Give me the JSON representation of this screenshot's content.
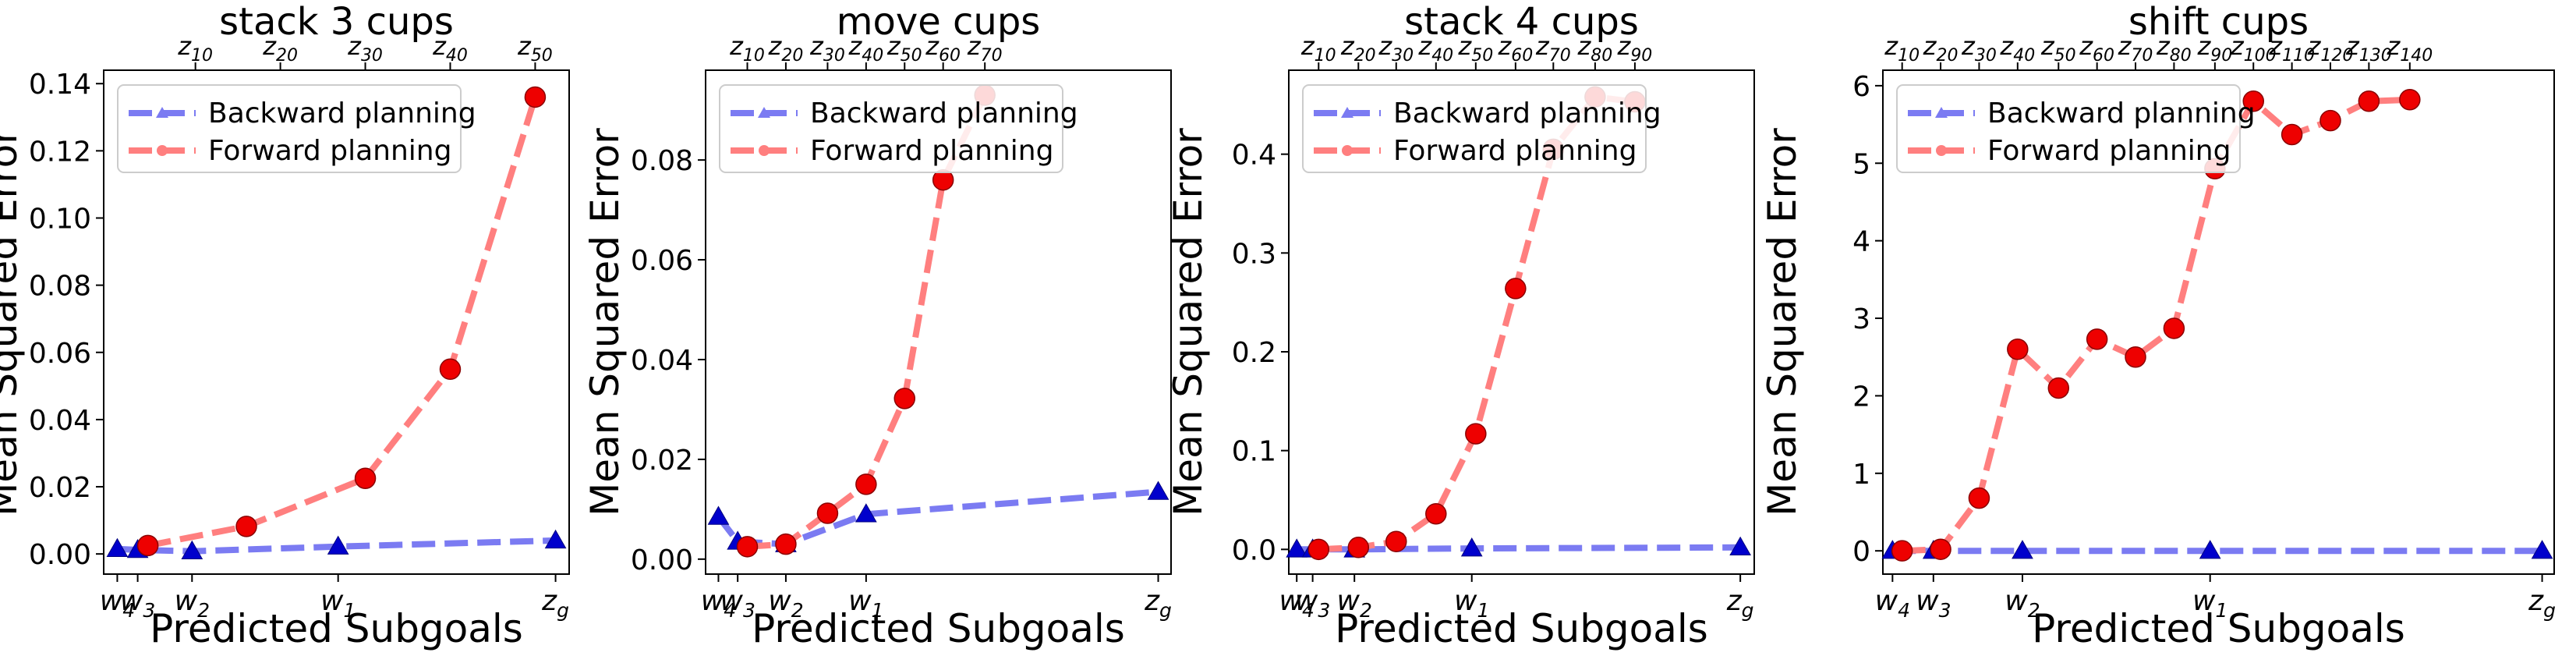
{
  "chart_data": [
    {
      "type": "line",
      "title": "stack 3 cups",
      "xlabel": "Predicted Subgoals",
      "ylabel": "Mean Squared Error",
      "legend_position": "top-left",
      "ylim": [
        -0.006,
        0.144
      ],
      "yticks": [
        0.0,
        0.02,
        0.04,
        0.06,
        0.08,
        0.1,
        0.12,
        0.14
      ],
      "ytick_labels": [
        "0.00",
        "0.02",
        "0.04",
        "0.06",
        "0.08",
        "0.10",
        "0.12",
        "0.14"
      ],
      "xlim": [
        -0.4,
        13.3
      ],
      "bottom_ticks": [
        {
          "x": 0,
          "base": "w",
          "sub": "4"
        },
        {
          "x": 0.6,
          "base": "w",
          "sub": "3"
        },
        {
          "x": 2.2,
          "base": "w",
          "sub": "2"
        },
        {
          "x": 6.5,
          "base": "w",
          "sub": "1"
        },
        {
          "x": 12.9,
          "base": "z",
          "sub": "g"
        }
      ],
      "top_ticks": [
        {
          "x": 2.3,
          "base": "z",
          "sub": "10"
        },
        {
          "x": 4.8,
          "base": "z",
          "sub": "20"
        },
        {
          "x": 7.3,
          "base": "z",
          "sub": "30"
        },
        {
          "x": 9.8,
          "base": "z",
          "sub": "40"
        },
        {
          "x": 12.3,
          "base": "z",
          "sub": "50"
        }
      ],
      "series": [
        {
          "name": "Backward planning",
          "color": "#7b7bf2",
          "marker": "triangle",
          "marker_color": "#0000cc",
          "x": [
            0,
            0.6,
            2.2,
            6.5,
            12.9
          ],
          "y": [
            0.0015,
            0.0012,
            0.0008,
            0.0022,
            0.004
          ]
        },
        {
          "name": "Forward planning",
          "color": "#ff7f7f",
          "marker": "circle",
          "marker_color": "#ee0000",
          "x": [
            0.9,
            3.8,
            7.3,
            9.8,
            12.3
          ],
          "y": [
            0.0025,
            0.0082,
            0.0225,
            0.055,
            0.136
          ]
        }
      ]
    },
    {
      "type": "line",
      "title": "move cups",
      "xlabel": "Predicted Subgoals",
      "ylabel": "Mean Squared Error",
      "legend_position": "top-left",
      "ylim": [
        -0.003,
        0.098
      ],
      "yticks": [
        0.0,
        0.02,
        0.04,
        0.06,
        0.08
      ],
      "ytick_labels": [
        "0.00",
        "0.02",
        "0.04",
        "0.06",
        "0.08"
      ],
      "xlim": [
        -0.4,
        14.1
      ],
      "bottom_ticks": [
        {
          "x": 0,
          "base": "w",
          "sub": "4"
        },
        {
          "x": 0.6,
          "base": "w",
          "sub": "3"
        },
        {
          "x": 2.1,
          "base": "w",
          "sub": "2"
        },
        {
          "x": 4.6,
          "base": "w",
          "sub": "1"
        },
        {
          "x": 13.7,
          "base": "z",
          "sub": "g"
        }
      ],
      "top_ticks": [
        {
          "x": 0.9,
          "base": "z",
          "sub": "10"
        },
        {
          "x": 2.1,
          "base": "z",
          "sub": "20"
        },
        {
          "x": 3.4,
          "base": "z",
          "sub": "30"
        },
        {
          "x": 4.6,
          "base": "z",
          "sub": "40"
        },
        {
          "x": 5.8,
          "base": "z",
          "sub": "50"
        },
        {
          "x": 7.0,
          "base": "z",
          "sub": "60"
        },
        {
          "x": 8.3,
          "base": "z",
          "sub": "70"
        }
      ],
      "series": [
        {
          "name": "Backward planning",
          "color": "#7b7bf2",
          "marker": "triangle",
          "marker_color": "#0000cc",
          "x": [
            0,
            0.6,
            2.1,
            4.6,
            13.7
          ],
          "y": [
            0.0085,
            0.0035,
            0.003,
            0.009,
            0.0135
          ]
        },
        {
          "name": "Forward planning",
          "color": "#ff7f7f",
          "marker": "circle",
          "marker_color": "#ee0000",
          "x": [
            0.9,
            2.1,
            3.4,
            4.6,
            5.8,
            7.0,
            8.3
          ],
          "y": [
            0.0025,
            0.003,
            0.0092,
            0.015,
            0.0322,
            0.076,
            0.093
          ]
        }
      ]
    },
    {
      "type": "line",
      "title": "stack 4 cups",
      "xlabel": "Predicted Subgoals",
      "ylabel": "Mean Squared Error",
      "legend_position": "top-left",
      "ylim": [
        -0.025,
        0.485
      ],
      "yticks": [
        0.0,
        0.1,
        0.2,
        0.3,
        0.4
      ],
      "ytick_labels": [
        "0.0",
        "0.1",
        "0.2",
        "0.3",
        "0.4"
      ],
      "xlim": [
        -0.4,
        23.0
      ],
      "bottom_ticks": [
        {
          "x": 0,
          "base": "w",
          "sub": "4"
        },
        {
          "x": 0.8,
          "base": "w",
          "sub": "3"
        },
        {
          "x": 2.9,
          "base": "w",
          "sub": "2"
        },
        {
          "x": 8.8,
          "base": "w",
          "sub": "1"
        },
        {
          "x": 22.3,
          "base": "z",
          "sub": "g"
        }
      ],
      "top_ticks": [
        {
          "x": 1.1,
          "base": "z",
          "sub": "10"
        },
        {
          "x": 3.1,
          "base": "z",
          "sub": "20"
        },
        {
          "x": 5.0,
          "base": "z",
          "sub": "30"
        },
        {
          "x": 7.0,
          "base": "z",
          "sub": "40"
        },
        {
          "x": 9.0,
          "base": "z",
          "sub": "50"
        },
        {
          "x": 11.0,
          "base": "z",
          "sub": "60"
        },
        {
          "x": 12.9,
          "base": "z",
          "sub": "70"
        },
        {
          "x": 15.0,
          "base": "z",
          "sub": "80"
        },
        {
          "x": 17.0,
          "base": "z",
          "sub": "90"
        }
      ],
      "series": [
        {
          "name": "Backward planning",
          "color": "#7b7bf2",
          "marker": "triangle",
          "marker_color": "#0000cc",
          "x": [
            0,
            0.8,
            2.9,
            8.8,
            22.3
          ],
          "y": [
            0.0,
            0.0,
            0.0,
            0.001,
            0.002
          ]
        },
        {
          "name": "Forward planning",
          "color": "#ff7f7f",
          "marker": "circle",
          "marker_color": "#ee0000",
          "x": [
            1.1,
            3.1,
            5.0,
            7.0,
            9.0,
            11.0,
            12.9,
            15.0,
            17.0
          ],
          "y": [
            0.0,
            0.002,
            0.008,
            0.036,
            0.117,
            0.264,
            0.405,
            0.458,
            0.453
          ]
        }
      ]
    },
    {
      "type": "line",
      "title": "shift cups",
      "xlabel": "Predicted Subgoals",
      "ylabel": "Mean Squared Error",
      "legend_position": "top-left",
      "ylim": [
        -0.3,
        6.2
      ],
      "yticks": [
        0,
        1,
        2,
        3,
        4,
        5,
        6
      ],
      "ytick_labels": [
        "0",
        "1",
        "2",
        "3",
        "4",
        "5",
        "6"
      ],
      "xlim": [
        -0.4,
        27.5
      ],
      "bottom_ticks": [
        {
          "x": 0,
          "base": "w",
          "sub": "4"
        },
        {
          "x": 1.7,
          "base": "w",
          "sub": "3"
        },
        {
          "x": 5.4,
          "base": "w",
          "sub": "2"
        },
        {
          "x": 13.2,
          "base": "w",
          "sub": "1"
        },
        {
          "x": 27.0,
          "base": "z",
          "sub": "g"
        }
      ],
      "top_ticks": [
        {
          "x": 0.4,
          "base": "z",
          "sub": "10"
        },
        {
          "x": 2.0,
          "base": "z",
          "sub": "20"
        },
        {
          "x": 3.6,
          "base": "z",
          "sub": "30"
        },
        {
          "x": 5.2,
          "base": "z",
          "sub": "40"
        },
        {
          "x": 6.9,
          "base": "z",
          "sub": "50"
        },
        {
          "x": 8.5,
          "base": "z",
          "sub": "60"
        },
        {
          "x": 10.1,
          "base": "z",
          "sub": "70"
        },
        {
          "x": 11.7,
          "base": "z",
          "sub": "80"
        },
        {
          "x": 13.4,
          "base": "z",
          "sub": "90"
        },
        {
          "x": 15.0,
          "base": "z",
          "sub": "100"
        },
        {
          "x": 16.6,
          "base": "z",
          "sub": "110"
        },
        {
          "x": 18.2,
          "base": "z",
          "sub": "120"
        },
        {
          "x": 19.8,
          "base": "z",
          "sub": "130"
        },
        {
          "x": 21.5,
          "base": "z",
          "sub": "140"
        }
      ],
      "series": [
        {
          "name": "Backward planning",
          "color": "#7b7bf2",
          "marker": "triangle",
          "marker_color": "#0000cc",
          "x": [
            0,
            1.7,
            5.4,
            13.2,
            27.0
          ],
          "y": [
            0.0,
            0.0,
            0.0,
            0.0,
            0.0
          ]
        },
        {
          "name": "Forward planning",
          "color": "#ff7f7f",
          "marker": "circle",
          "marker_color": "#ee0000",
          "x": [
            0.4,
            2.0,
            3.6,
            5.2,
            6.9,
            8.5,
            10.1,
            11.7,
            13.4,
            15.0,
            16.6,
            18.2,
            19.8,
            21.5
          ],
          "y": [
            0.0,
            0.02,
            0.68,
            2.6,
            2.1,
            2.73,
            2.5,
            2.87,
            4.93,
            5.8,
            5.37,
            5.55,
            5.8,
            5.82
          ]
        }
      ]
    }
  ]
}
